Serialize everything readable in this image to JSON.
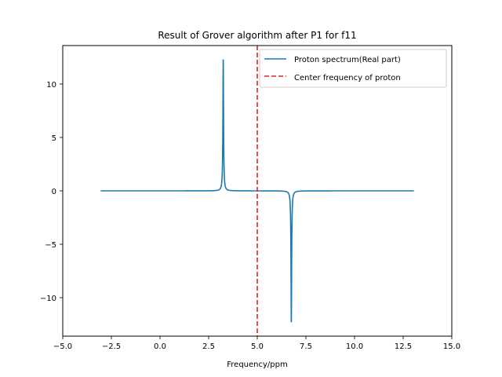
{
  "chart_data": {
    "type": "line",
    "title": "Result of Grover algorithm after P1 for f11",
    "xlabel": "Frequency/ppm",
    "ylabel": "",
    "xlim": [
      -5.0,
      15.0
    ],
    "ylim": [
      -13.6,
      13.6
    ],
    "xticks": [
      -5.0,
      -2.5,
      0.0,
      2.5,
      5.0,
      7.5,
      10.0,
      12.5,
      15.0
    ],
    "xtick_labels": [
      "−5.0",
      "−2.5",
      "0.0",
      "2.5",
      "5.0",
      "7.5",
      "10.0",
      "12.5",
      "15.0"
    ],
    "yticks": [
      -10,
      -5,
      0,
      5,
      10
    ],
    "ytick_labels": [
      "−10",
      "−5",
      "0",
      "5",
      "10"
    ],
    "grid": false,
    "legend_position": "top-right",
    "series": [
      {
        "name": "Proton spectrum(Real part)",
        "style": "solid",
        "color": "#1f77b4",
        "x_range": [
          -3.05,
          13.05
        ],
        "peaks": [
          {
            "x": 3.25,
            "height": 12.3,
            "width": 0.02
          },
          {
            "x": 6.75,
            "height": -12.3,
            "width": 0.02
          }
        ]
      },
      {
        "name": "Center frequency of proton",
        "style": "dashed",
        "color": "#d62728",
        "x": 5.0
      }
    ]
  }
}
